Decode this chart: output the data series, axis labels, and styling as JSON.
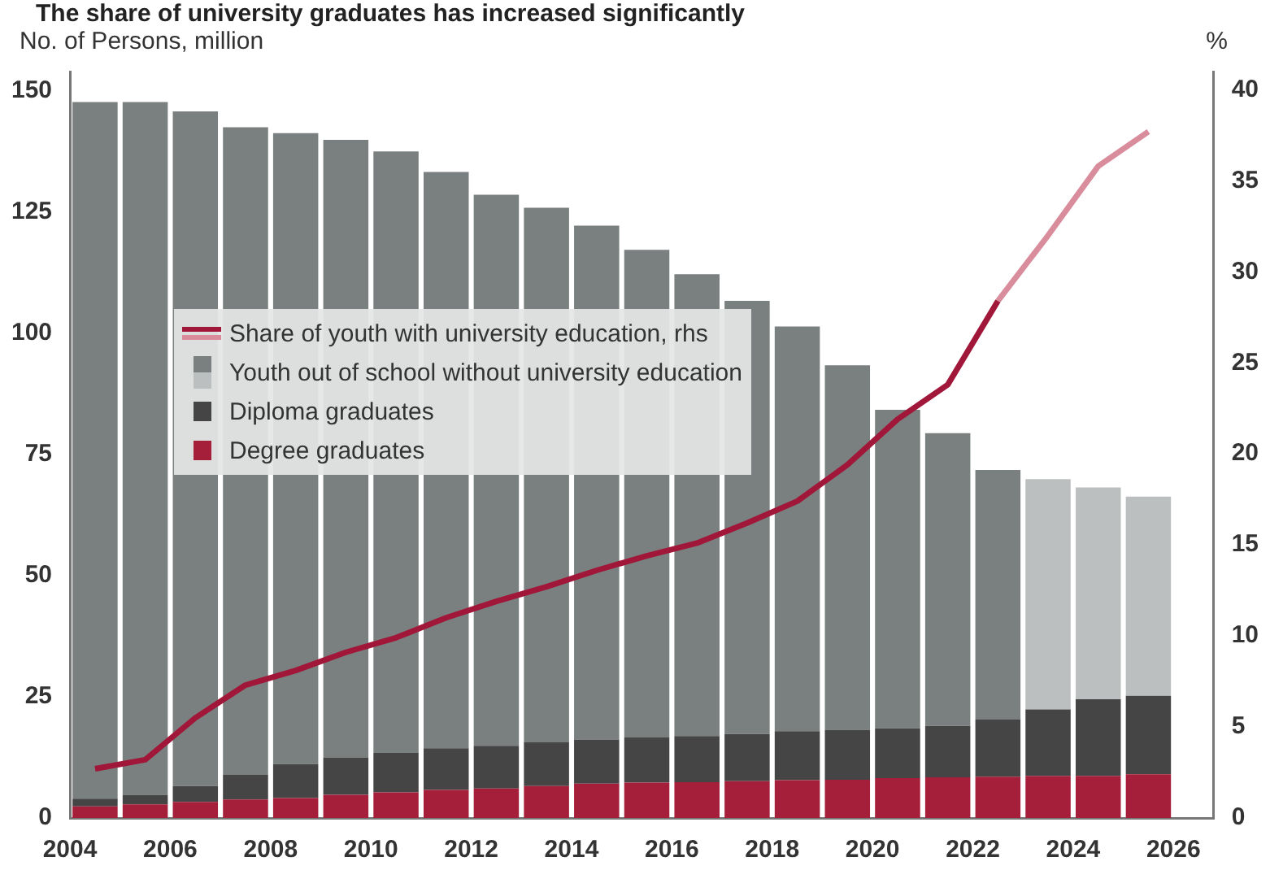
{
  "chart_data": {
    "type": "bar",
    "title": "The share of university graduates has increased significantly",
    "ylabel": "No. of Persons, million",
    "y2label": "%",
    "x": [
      2004.5,
      2005.5,
      2006.5,
      2007.5,
      2008.5,
      2009.5,
      2010.5,
      2011.5,
      2012.5,
      2013.5,
      2014.5,
      2015.5,
      2016.5,
      2017.5,
      2018.5,
      2019.5,
      2020.5,
      2021.5,
      2022.5,
      2023.5,
      2024.5,
      2025.5
    ],
    "series": [
      {
        "name": "Degree graduates",
        "color": "#a51e3a",
        "values": [
          2.4,
          2.8,
          3.3,
          3.8,
          4.1,
          4.8,
          5.3,
          5.8,
          6.1,
          6.6,
          7.1,
          7.3,
          7.4,
          7.6,
          7.8,
          7.9,
          8.2,
          8.4,
          8.5,
          8.7,
          8.7,
          9.0
        ]
      },
      {
        "name": "Diploma graduates",
        "color": "#454545",
        "values": [
          1.6,
          2.0,
          3.3,
          5.1,
          7.0,
          7.7,
          8.1,
          8.6,
          8.8,
          9.0,
          9.1,
          9.3,
          9.5,
          9.7,
          10.1,
          10.3,
          10.3,
          10.6,
          11.8,
          13.7,
          15.8,
          16.2
        ]
      },
      {
        "name": "Youth out of school without university education",
        "color": "#7a807f",
        "colors": [
          "#7a807f",
          "#7a807f",
          "#7a807f",
          "#7a807f",
          "#7a807f",
          "#7a807f",
          "#7a807f",
          "#7a807f",
          "#7a807f",
          "#7a807f",
          "#7a807f",
          "#7a807f",
          "#7a807f",
          "#7a807f",
          "#7a807f",
          "#7a807f",
          "#7a807f",
          "#7a807f",
          "#7a807f",
          "#bcbfc0",
          "#bcbfc0",
          "#bcbfc0"
        ],
        "values": [
          143.7,
          142.9,
          139.2,
          133.6,
          130.2,
          127.4,
          124.1,
          118.9,
          113.7,
          110.3,
          106.0,
          100.6,
          95.3,
          89.4,
          83.5,
          75.2,
          65.7,
          60.4,
          51.5,
          47.5,
          43.7,
          41.1
        ]
      },
      {
        "name": "Share of youth with university education, rhs",
        "type": "line",
        "axis": "y2",
        "color": "#a0173a",
        "values": [
          2.7,
          3.2,
          5.5,
          7.3,
          8.1,
          9.1,
          9.9,
          11.0,
          11.9,
          12.7,
          13.6,
          14.4,
          15.1,
          16.2,
          17.4,
          19.4,
          21.9,
          23.8,
          28.4,
          null,
          null,
          null
        ]
      },
      {
        "type": "line",
        "axis": "y2",
        "color": "#d98c9c",
        "values": [
          null,
          null,
          null,
          null,
          null,
          null,
          null,
          null,
          null,
          null,
          null,
          null,
          null,
          null,
          null,
          null,
          null,
          null,
          28.4,
          32.0,
          35.8,
          37.7
        ]
      }
    ],
    "stacked": true,
    "xlim": [
      2004,
      2026.8
    ],
    "xticks": [
      2004,
      2006,
      2008,
      2010,
      2012,
      2014,
      2016,
      2018,
      2020,
      2022,
      2024,
      2026
    ],
    "ylim": [
      0,
      154
    ],
    "yticks": [
      0,
      25,
      50,
      75,
      100,
      125,
      150
    ],
    "y2lim": [
      0,
      41
    ],
    "y2ticks": [
      0,
      5,
      10,
      15,
      20,
      25,
      30,
      35,
      40
    ],
    "grid": false,
    "legend": "left",
    "marker": "none",
    "line_style": "solid"
  }
}
